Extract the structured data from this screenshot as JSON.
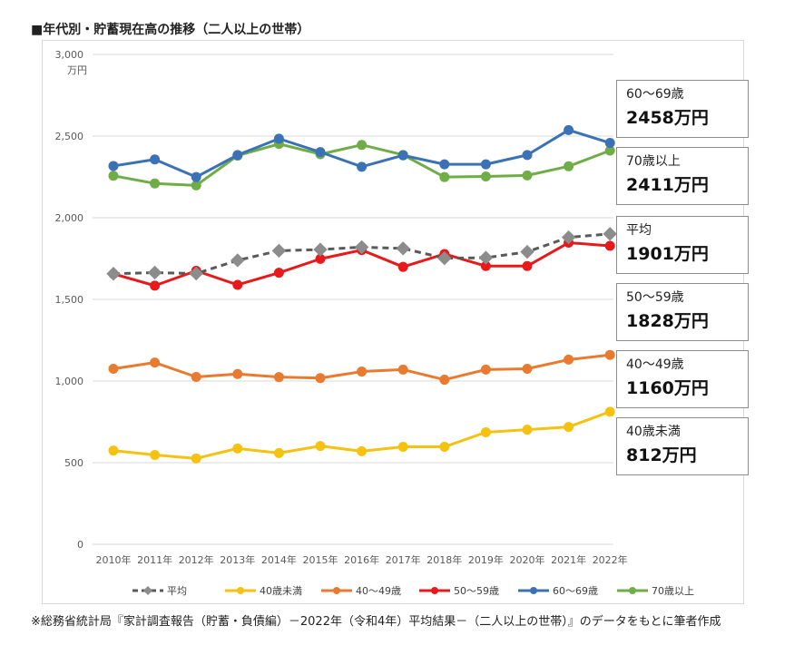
{
  "title": "■年代別・貯蓄現在高の推移（二人以上の世帯）",
  "source_note": "※総務省統計局『家計調査報告（貯蓄・負債編）－2022年（令和4年）平均結果－（二人以上の世帯）』のデータをもとに筆者作成",
  "chart_data": {
    "type": "line",
    "title": "■年代別・貯蓄現在高の推移（二人以上の世帯）",
    "xlabel": "",
    "ylabel": "万円",
    "ylim": [
      0,
      3000
    ],
    "yticks": [
      0,
      500,
      1000,
      1500,
      2000,
      2500,
      3000
    ],
    "ytick_labels": [
      "0",
      "500",
      "1,000",
      "1,500",
      "2,000",
      "2,500",
      "3,000"
    ],
    "grid": true,
    "legend_position": "bottom",
    "categories": [
      "2010年",
      "2011年",
      "2012年",
      "2013年",
      "2014年",
      "2015年",
      "2016年",
      "2017年",
      "2018年",
      "2019年",
      "2020年",
      "2021年",
      "2022年"
    ],
    "series": [
      {
        "name": "平均",
        "color": "#595959",
        "marker": "diamond",
        "dashed": true,
        "values": [
          1657,
          1664,
          1658,
          1739,
          1798,
          1805,
          1820,
          1812,
          1752,
          1755,
          1791,
          1880,
          1901
        ]
      },
      {
        "name": "40歳未満",
        "color": "#f5c211",
        "marker": "circle",
        "dashed": false,
        "values": [
          574,
          547,
          526,
          587,
          559,
          602,
          570,
          597,
          597,
          686,
          702,
          719,
          812
        ]
      },
      {
        "name": "40～49歳",
        "color": "#e87b30",
        "marker": "circle",
        "dashed": false,
        "values": [
          1075,
          1113,
          1025,
          1043,
          1024,
          1018,
          1058,
          1070,
          1008,
          1070,
          1075,
          1131,
          1160
        ]
      },
      {
        "name": "50～59歳",
        "color": "#e8191a",
        "marker": "circle",
        "dashed": false,
        "values": [
          1656,
          1584,
          1675,
          1589,
          1663,
          1748,
          1802,
          1699,
          1778,
          1704,
          1704,
          1847,
          1828
        ]
      },
      {
        "name": "60～69歳",
        "color": "#3a72b5",
        "marker": "circle",
        "dashed": false,
        "values": [
          2317,
          2357,
          2249,
          2384,
          2484,
          2402,
          2312,
          2382,
          2327,
          2327,
          2384,
          2537,
          2458
        ]
      },
      {
        "name": "70歳以上",
        "color": "#70ad47",
        "marker": "circle",
        "dashed": false,
        "values": [
          2257,
          2210,
          2198,
          2380,
          2452,
          2389,
          2446,
          2385,
          2249,
          2253,
          2259,
          2315,
          2411
        ]
      }
    ],
    "callouts": [
      {
        "label": "60～69歳",
        "value": "2458万円"
      },
      {
        "label": "70歳以上",
        "value": "2411万円"
      },
      {
        "label": "平均",
        "value": "1901万円"
      },
      {
        "label": "50～59歳",
        "value": "1828万円"
      },
      {
        "label": "40～49歳",
        "value": "1160万円"
      },
      {
        "label": "40歳未満",
        "value": "812万円"
      }
    ]
  }
}
